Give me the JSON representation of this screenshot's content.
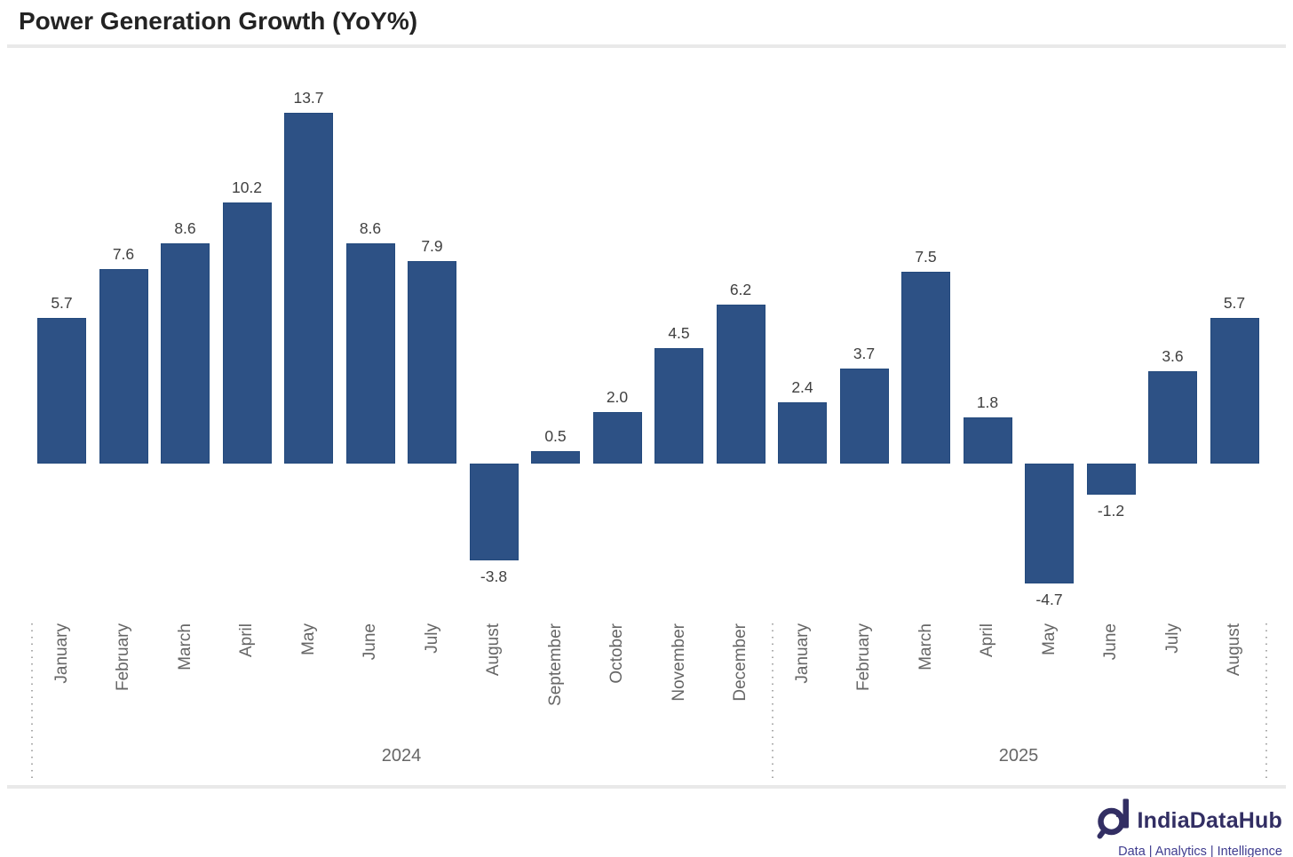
{
  "title": "Power Generation Growth (YoY%)",
  "chart_data": {
    "type": "bar",
    "title": "Power Generation Growth (YoY%)",
    "unit": "YoY %",
    "grid": false,
    "legend": false,
    "value_labels": true,
    "x_groups": [
      {
        "label": "2024",
        "categories": [
          "January",
          "February",
          "March",
          "April",
          "May",
          "June",
          "July",
          "August",
          "September",
          "October",
          "November",
          "December"
        ],
        "values": [
          5.7,
          7.6,
          8.6,
          10.2,
          13.7,
          8.6,
          7.9,
          -3.8,
          0.5,
          2.0,
          4.5,
          6.2
        ]
      },
      {
        "label": "2025",
        "categories": [
          "January",
          "February",
          "March",
          "April",
          "May",
          "June",
          "July",
          "August"
        ],
        "values": [
          2.4,
          3.7,
          7.5,
          1.8,
          -4.7,
          -1.2,
          3.6,
          5.7
        ]
      }
    ],
    "colors": {
      "bar": "#2d5185",
      "value_label": "#404040",
      "axis_label": "#666666",
      "separator": "#ababab",
      "divider": "#e9e9e9",
      "title": "#232323"
    }
  },
  "logo": {
    "brand": "IndiaDataHub",
    "tagline": "Data | Analytics | Intelligence",
    "icon": "magnifier-d-icon",
    "color": "#322e63",
    "tagline_color": "#3f3c8f"
  }
}
